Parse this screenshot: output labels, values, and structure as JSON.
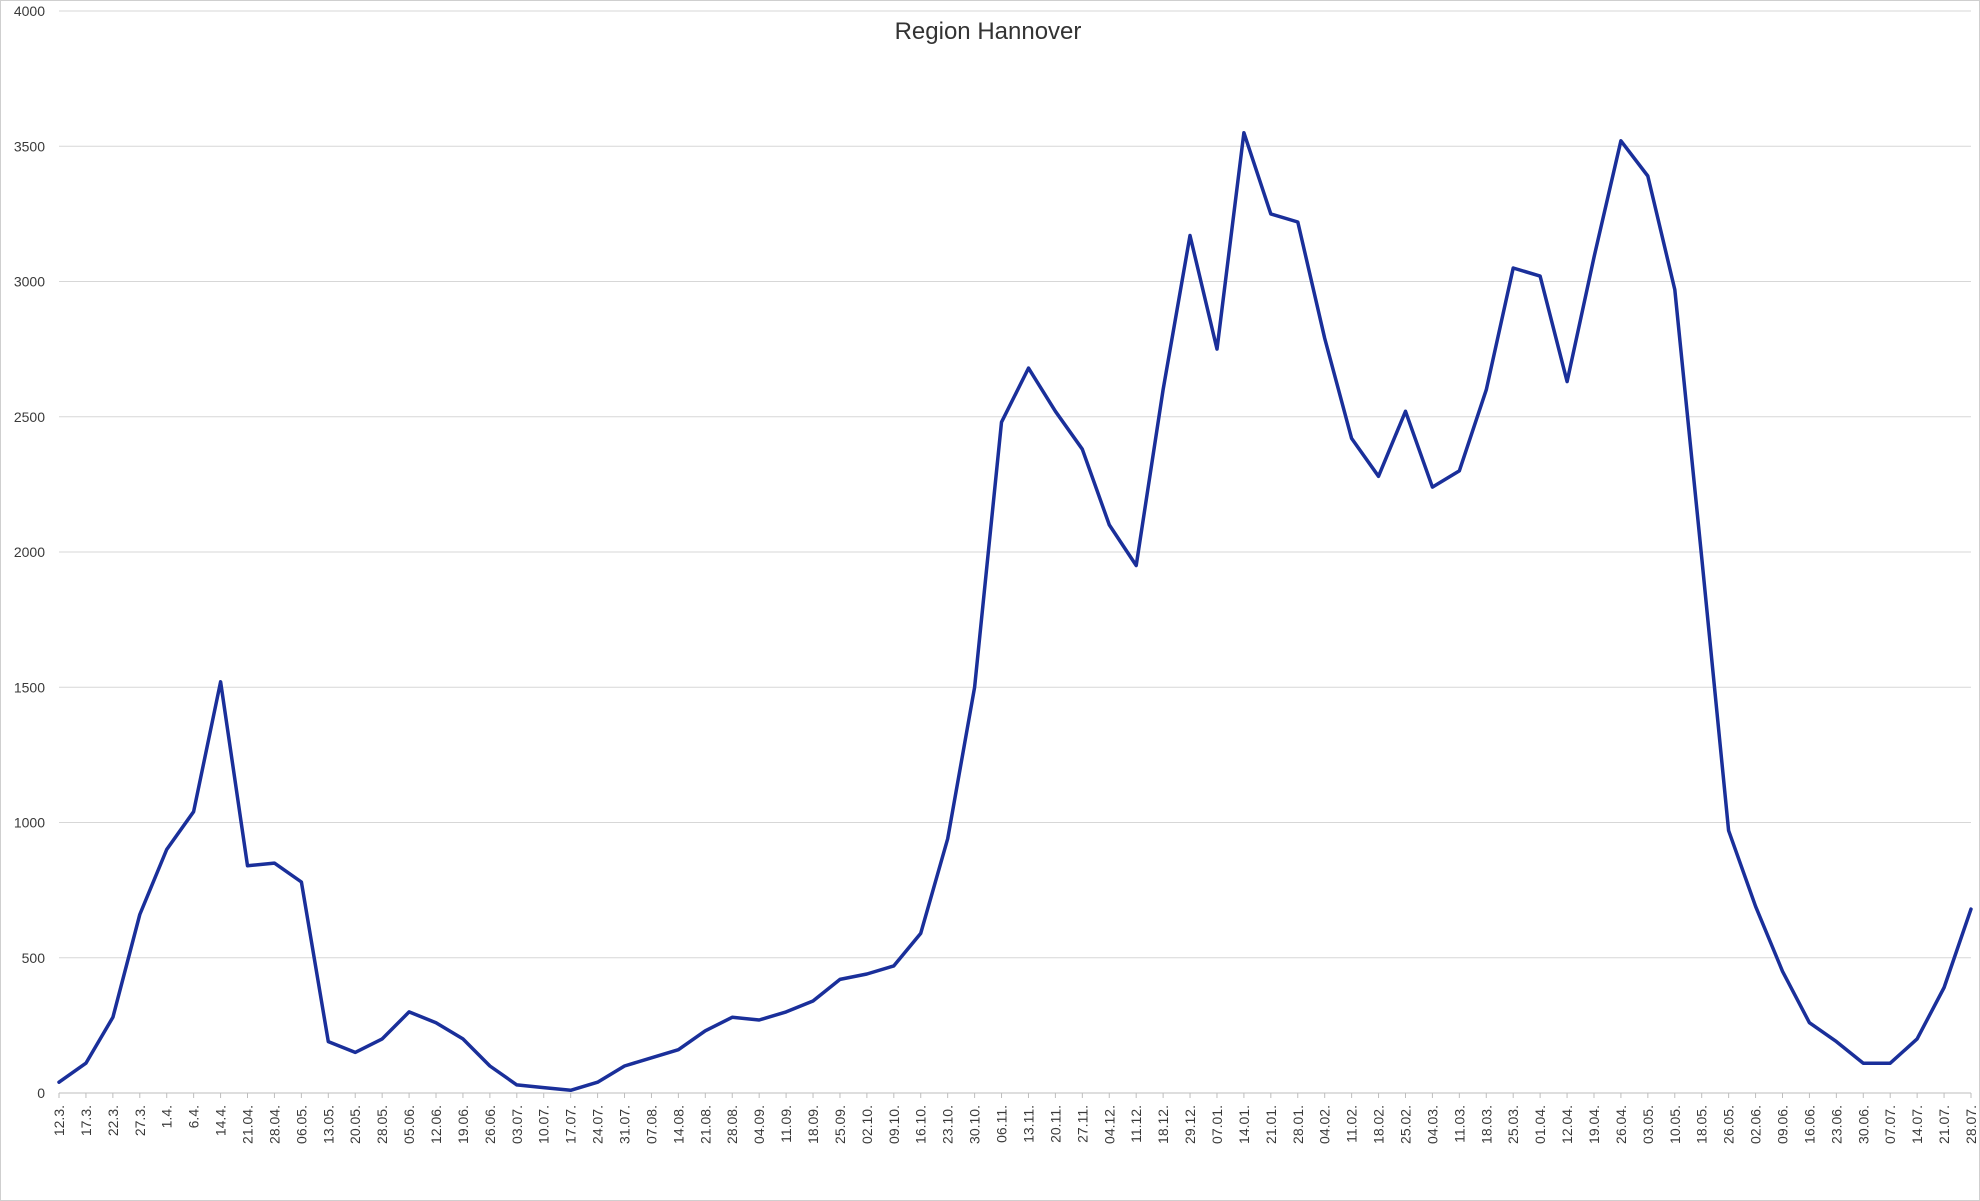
{
  "chart_data": {
    "type": "line",
    "title": "Region Hannover",
    "xlabel": "",
    "ylabel": "",
    "ylim": [
      0,
      4000
    ],
    "yticks": [
      0,
      500,
      1000,
      1500,
      2000,
      2500,
      3000,
      3500,
      4000
    ],
    "grid": true,
    "legend": "none",
    "categories": [
      "12.3.",
      "17.3.",
      "22.3.",
      "27.3.",
      "1.4.",
      "6.4.",
      "14.4.",
      "21.04.",
      "28.04.",
      "06.05.",
      "13.05.",
      "20.05.",
      "28.05.",
      "05.06.",
      "12.06.",
      "19.06.",
      "26.06.",
      "03.07.",
      "10.07.",
      "17.07.",
      "24.07.",
      "31.07.",
      "07.08.",
      "14.08.",
      "21.08.",
      "28.08.",
      "04.09.",
      "11.09.",
      "18.09.",
      "25.09.",
      "02.10.",
      "09.10.",
      "16.10.",
      "23.10.",
      "30.10.",
      "06.11.",
      "13.11.",
      "20.11.",
      "27.11.",
      "04.12.",
      "11.12.",
      "18.12.",
      "29.12.",
      "07.01.",
      "14.01.",
      "21.01.",
      "28.01.",
      "04.02.",
      "11.02.",
      "18.02.",
      "25.02.",
      "04.03.",
      "11.03.",
      "18.03.",
      "25.03.",
      "01.04.",
      "12.04.",
      "19.04.",
      "26.04.",
      "03.05.",
      "10.05.",
      "18.05.",
      "26.05.",
      "02.06.",
      "09.06.",
      "16.06.",
      "23.06.",
      "30.06.",
      "07.07.",
      "14.07.",
      "21.07.",
      "28.07."
    ],
    "series": [
      {
        "color": "#1a2f9a",
        "values": [
          40,
          110,
          280,
          660,
          900,
          1040,
          1520,
          840,
          850,
          780,
          190,
          150,
          200,
          300,
          260,
          200,
          100,
          30,
          20,
          10,
          40,
          100,
          130,
          160,
          230,
          280,
          270,
          300,
          340,
          420,
          440,
          470,
          590,
          940,
          1500,
          2480,
          2680,
          2520,
          2380,
          2100,
          1950,
          2600,
          3170,
          2750,
          3550,
          3250,
          3220,
          2790,
          2420,
          2280,
          2520,
          2240,
          2300,
          2600,
          3050,
          3020,
          2630,
          3090,
          3520,
          3390,
          2970,
          1980,
          970,
          690,
          450,
          260,
          190,
          110,
          110,
          200,
          390,
          680
        ]
      }
    ]
  }
}
